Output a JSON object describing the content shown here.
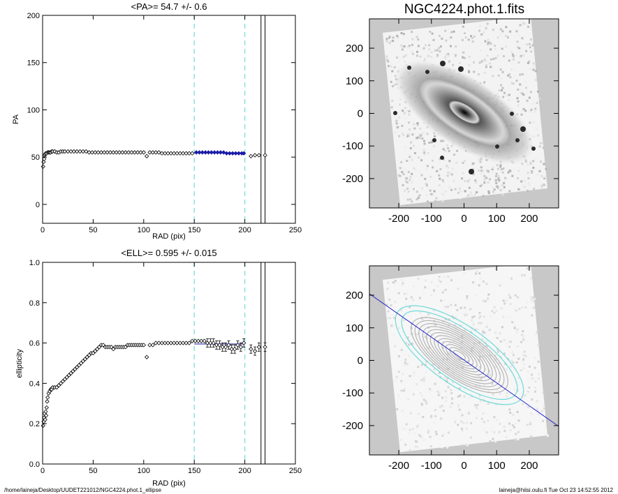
{
  "chart_data": [
    {
      "type": "scatter",
      "title": "<PA>=  54.7 +/-   0.6",
      "xlabel": "RAD (pix)",
      "ylabel": "PA",
      "xlim": [
        0,
        250
      ],
      "ylim": [
        -20,
        200
      ],
      "xticks": [
        "0",
        "50",
        "100",
        "150",
        "200",
        "250"
      ],
      "yticks": [
        "0",
        "50",
        "100",
        "150",
        "200"
      ],
      "vlines_dashed_cyan": [
        150,
        200
      ],
      "vlines_solid_black": [
        216,
        220
      ],
      "mean_line": {
        "x": [
          150,
          200
        ],
        "y": 54.7,
        "color": "#1a1aa8"
      },
      "series": [
        {
          "marker": "diamond-outline",
          "x": [
            0.5,
            1,
            1.5,
            2,
            2.5,
            3,
            4,
            5,
            6,
            7,
            8,
            9,
            10,
            12,
            14,
            16,
            18,
            20,
            22,
            25,
            28,
            31,
            34,
            37,
            40,
            43,
            46,
            49,
            52,
            55,
            58,
            61,
            64,
            67,
            70,
            73,
            76,
            79,
            82,
            85,
            88,
            91,
            94,
            97,
            100,
            103,
            106,
            109,
            112,
            115,
            118,
            121,
            124,
            127,
            130,
            133,
            136,
            139,
            142,
            145,
            148,
            206,
            210,
            214,
            220
          ],
          "y": [
            40,
            45,
            48,
            52,
            53,
            54,
            54,
            55,
            55,
            55,
            55,
            56,
            56,
            56,
            55,
            55,
            56,
            56,
            56,
            56,
            56,
            56,
            56,
            56,
            56,
            56,
            55,
            55,
            55,
            55,
            55,
            55,
            55,
            55,
            55,
            55,
            55,
            55,
            55,
            55,
            55,
            55,
            55,
            55,
            55,
            51,
            55,
            55,
            55,
            55,
            54,
            54,
            54,
            54,
            54,
            54,
            54,
            54,
            54,
            54,
            54,
            51,
            52,
            52,
            52
          ]
        },
        {
          "marker": "diamond-filled-blue",
          "x": [
            152,
            155,
            158,
            161,
            164,
            167,
            170,
            173,
            176,
            179,
            182,
            185,
            188,
            191,
            194,
            197,
            199
          ],
          "y": [
            55,
            55,
            55,
            55,
            55,
            55,
            55,
            55,
            55,
            55,
            54,
            54,
            54,
            54,
            54,
            54,
            54
          ]
        }
      ]
    },
    {
      "type": "scatter",
      "title": "<ELL>= 0.595 +/-  0.015",
      "xlabel": "RAD (pix)",
      "ylabel": "ellipticity",
      "xlim": [
        0,
        250
      ],
      "ylim": [
        0.0,
        1.0
      ],
      "xticks": [
        "0",
        "50",
        "100",
        "150",
        "200",
        "250"
      ],
      "yticks": [
        "0.0",
        "0.2",
        "0.4",
        "0.6",
        "0.8",
        "1.0"
      ],
      "vlines_dashed_cyan": [
        150,
        200
      ],
      "vlines_solid_black": [
        216,
        220
      ],
      "mean_line": {
        "x": [
          150,
          200
        ],
        "y": 0.595,
        "color": "#1a1aa8"
      },
      "series": [
        {
          "marker": "diamond-outline",
          "x": [
            0.5,
            1,
            1.5,
            2,
            2.5,
            3,
            3.5,
            4,
            4.5,
            5,
            6,
            7,
            8,
            9,
            10,
            12,
            14,
            16,
            18,
            20,
            22,
            24,
            26,
            28,
            30,
            32,
            34,
            36,
            38,
            40,
            42,
            44,
            46,
            48,
            50,
            52,
            54,
            56,
            58,
            60,
            62,
            64,
            66,
            68,
            70,
            72,
            74,
            76,
            78,
            80,
            82,
            84,
            86,
            88,
            90,
            92,
            94,
            96,
            98,
            100,
            103,
            106,
            109,
            112,
            115,
            118,
            121,
            124,
            127,
            130,
            133,
            136,
            139,
            142,
            145,
            148,
            151,
            154,
            157,
            160,
            163,
            166,
            169,
            172,
            175,
            178,
            181,
            184,
            187,
            190,
            193,
            196,
            199,
            206,
            210,
            214,
            220
          ],
          "y": [
            0.19,
            0.21,
            0.23,
            0.25,
            0.22,
            0.26,
            0.24,
            0.28,
            0.31,
            0.33,
            0.35,
            0.36,
            0.37,
            0.37,
            0.38,
            0.38,
            0.38,
            0.39,
            0.4,
            0.41,
            0.42,
            0.43,
            0.44,
            0.45,
            0.46,
            0.47,
            0.48,
            0.49,
            0.5,
            0.51,
            0.52,
            0.53,
            0.54,
            0.55,
            0.55,
            0.56,
            0.57,
            0.58,
            0.59,
            0.59,
            0.58,
            0.58,
            0.58,
            0.58,
            0.57,
            0.58,
            0.58,
            0.58,
            0.58,
            0.58,
            0.58,
            0.59,
            0.59,
            0.59,
            0.59,
            0.59,
            0.59,
            0.59,
            0.59,
            0.59,
            0.53,
            0.59,
            0.59,
            0.6,
            0.6,
            0.6,
            0.6,
            0.6,
            0.6,
            0.6,
            0.6,
            0.6,
            0.6,
            0.6,
            0.6,
            0.61,
            0.61,
            0.61,
            0.61,
            0.61,
            0.6,
            0.6,
            0.6,
            0.59,
            0.59,
            0.58,
            0.58,
            0.59,
            0.57,
            0.57,
            0.59,
            0.58,
            0.6,
            0.57,
            0.56,
            0.58,
            0.58
          ]
        }
      ]
    },
    {
      "type": "image",
      "title": "NGC4224.phot.1.fits",
      "xlim": [
        -290,
        290
      ],
      "ylim": [
        -290,
        290
      ],
      "xticks": [
        "-200",
        "-100",
        "0",
        "100",
        "200"
      ],
      "yticks": [
        "-200",
        "-100",
        "0",
        "100",
        "200"
      ]
    },
    {
      "type": "image",
      "title": "",
      "xlim": [
        -290,
        290
      ],
      "ylim": [
        -290,
        290
      ],
      "xticks": [
        "-200",
        "-100",
        "0",
        "100",
        "200"
      ],
      "yticks": [
        "-200",
        "-100",
        "0",
        "100",
        "200"
      ],
      "major_axis_line_color": "#2222cc",
      "contour_colors": [
        "#66dddd",
        "#bbbbbb"
      ]
    }
  ],
  "footer": {
    "left": "/home/laineja/Desktop/UUDET221012/NGC4224.phot.1_ellipse",
    "right": "laineja@hiisi.oulu.fi  Tue Oct 23 14:52:55 2012"
  },
  "colors": {
    "cyan_dash": "#7fdcdc",
    "blue_points": "#1a1aa8",
    "image_bg": "#c8c8c8"
  }
}
